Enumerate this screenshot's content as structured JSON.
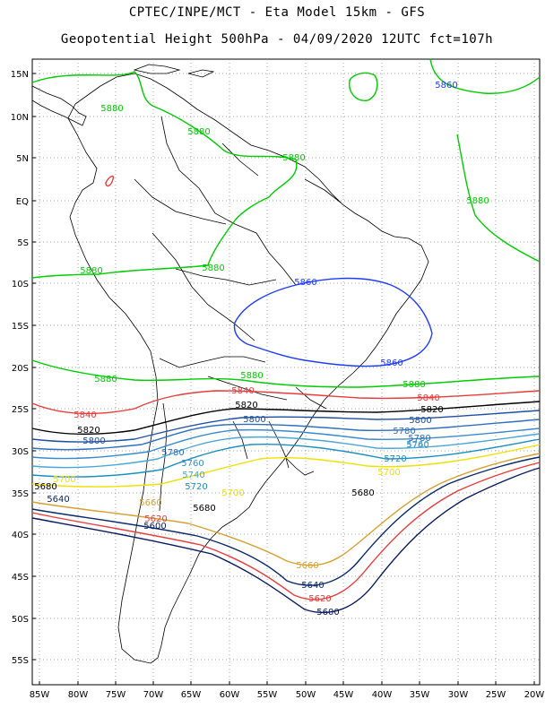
{
  "header": {
    "line1": "CPTEC/INPE/MCT -  Eta Model 15km - GFS",
    "line2": "Geopotential Height 500hPa - 04/09/2020 12UTC fct=107h"
  },
  "axes": {
    "lat_labels": [
      "15N",
      "10N",
      "5N",
      "EQ",
      "5S",
      "10S",
      "15S",
      "20S",
      "25S",
      "30S",
      "35S",
      "40S",
      "45S",
      "50S",
      "55S"
    ],
    "lon_labels": [
      "85W",
      "80W",
      "75W",
      "70W",
      "65W",
      "60W",
      "55W",
      "50W",
      "45W",
      "40W",
      "35W",
      "30W",
      "25W",
      "20W"
    ]
  },
  "colors": {
    "c5880": "#00cc00",
    "c5860": "#1e3cff",
    "c5840": "#e83c3c",
    "c5820": "#000000",
    "c5800": "#2050a0",
    "c5780": "#2f6fbe",
    "c5760": "#3a8ad0",
    "c5740": "#4aa6d8",
    "c5720": "#1a8fc0",
    "c5700": "#f0e000",
    "c5660": "#d8a030",
    "c5640": "#0a2a6a",
    "c5620": "#e83c3c",
    "c5600": "#0a1a60"
  },
  "contour_labels": {
    "green": "5880",
    "blue": "5860",
    "red": "5840",
    "black": "5820",
    "darkblue": "5800",
    "c5780": "5780",
    "c5760": "5760",
    "c5740": "5740",
    "c5720": "5720",
    "c5700": "5700",
    "c5680": "5680",
    "c5660": "5660",
    "c5640": "5640",
    "c5620": "5620",
    "c5600": "5600"
  }
}
